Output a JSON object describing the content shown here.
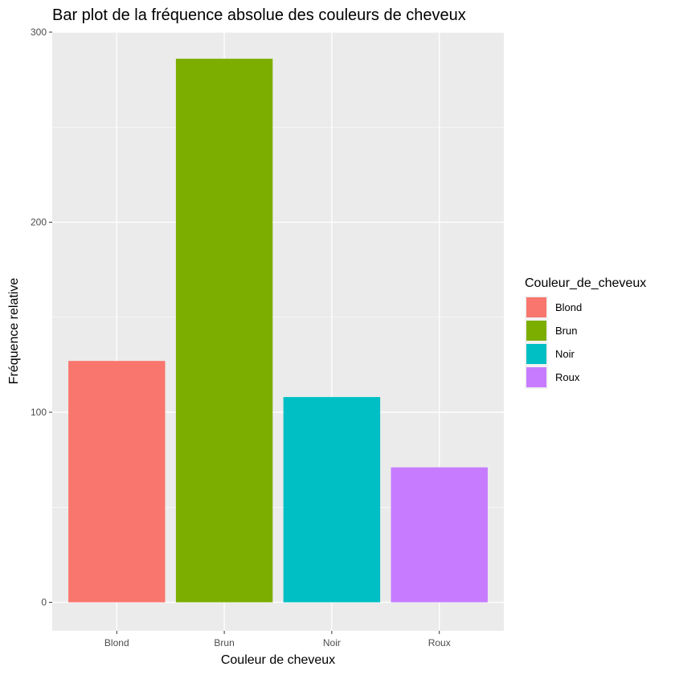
{
  "chart_data": {
    "type": "bar",
    "title": "Bar plot de la fréquence absolue des couleurs de cheveux",
    "xlabel": "Couleur de cheveux",
    "ylabel": "Fréquence relative",
    "categories": [
      "Blond",
      "Brun",
      "Noir",
      "Roux"
    ],
    "values": [
      127,
      286,
      108,
      71
    ],
    "colors": [
      "#F8766D",
      "#7CAE00",
      "#00BFC4",
      "#C77CFF"
    ],
    "ylim": [
      -15,
      300
    ],
    "yticks": [
      0,
      100,
      200,
      300
    ],
    "grid": true,
    "legend": {
      "title": "Couleur_de_cheveux",
      "position": "right",
      "items": [
        "Blond",
        "Brun",
        "Noir",
        "Roux"
      ]
    }
  }
}
